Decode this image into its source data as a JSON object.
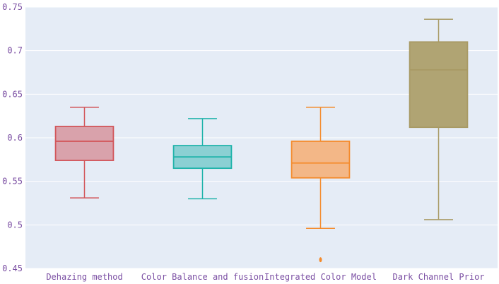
{
  "chart_data": {
    "type": "box",
    "title": "",
    "xlabel": "",
    "ylabel": "",
    "ylim": [
      0.45,
      0.75
    ],
    "yticks": [
      "0.45",
      "0.5",
      "0.55",
      "0.6",
      "0.65",
      "0.7",
      "0.75"
    ],
    "grid": true,
    "legend": "none",
    "colors": {
      "background": "#e5ecf6",
      "grid": "#ffffff",
      "tick_text": "#7b4fa3"
    },
    "categories": [
      "Dehazing method",
      "Color Balance and fusion",
      "Integrated Color Model",
      "Dark Channel Prior"
    ],
    "series": [
      {
        "category": "Dehazing method",
        "min": 0.531,
        "q1": 0.574,
        "median": 0.596,
        "q3": 0.613,
        "max": 0.635,
        "outliers": [],
        "stroke": "#d2565a",
        "fill": "#d9a2ab"
      },
      {
        "category": "Color Balance and fusion",
        "min": 0.53,
        "q1": 0.565,
        "median": 0.578,
        "q3": 0.591,
        "max": 0.622,
        "outliers": [],
        "stroke": "#1fb3aa",
        "fill": "#8bd0d3"
      },
      {
        "category": "Integrated Color Model",
        "min": 0.496,
        "q1": 0.554,
        "median": 0.571,
        "q3": 0.596,
        "max": 0.635,
        "outliers": [
          0.46
        ],
        "stroke": "#f48b2c",
        "fill": "#f3b787"
      },
      {
        "category": "Dark Channel Prior",
        "min": 0.506,
        "q1": 0.612,
        "median": 0.678,
        "q3": 0.71,
        "max": 0.736,
        "outliers": [],
        "stroke": "#a89a64",
        "fill": "#b0a473"
      }
    ]
  }
}
